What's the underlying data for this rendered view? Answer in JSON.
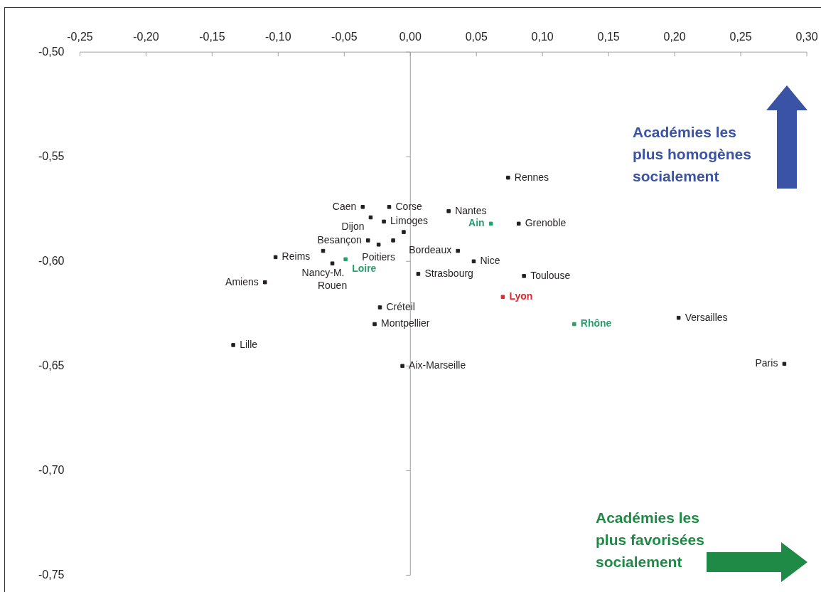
{
  "chart_data": {
    "type": "scatter",
    "marker": "square",
    "xlim": [
      -0.25,
      0.3
    ],
    "xticks": [
      {
        "value": -0.25,
        "label": "-0,25"
      },
      {
        "value": -0.2,
        "label": "-0,20"
      },
      {
        "value": -0.15,
        "label": "-0,15"
      },
      {
        "value": -0.1,
        "label": "-0,10"
      },
      {
        "value": -0.05,
        "label": "-0,05"
      },
      {
        "value": 0,
        "label": "0,00"
      },
      {
        "value": 0.05,
        "label": "0,05"
      },
      {
        "value": 0.1,
        "label": "0,10"
      },
      {
        "value": 0.15,
        "label": "0,15"
      },
      {
        "value": 0.2,
        "label": "0,20"
      },
      {
        "value": 0.25,
        "label": "0,25"
      },
      {
        "value": 0.3,
        "label": "0,30"
      }
    ],
    "ylim": [
      -0.75,
      -0.5
    ],
    "yticks": [
      {
        "value": -0.5,
        "label": "-0,50"
      },
      {
        "value": -0.55,
        "label": "-0,55"
      },
      {
        "value": -0.6,
        "label": "-0,60"
      },
      {
        "value": -0.65,
        "label": "-0,65"
      },
      {
        "value": -0.7,
        "label": "-0,70"
      },
      {
        "value": -0.75,
        "label": "-0,75"
      }
    ],
    "series": [
      {
        "x": [
          -0.036,
          -0.016,
          -0.03,
          -0.02,
          -0.005,
          -0.032,
          -0.024,
          -0.013,
          -0.066,
          -0.102,
          -0.059,
          -0.049,
          -0.11,
          0.029,
          0.061,
          0.082,
          0.074,
          0.036,
          0.048,
          0.086,
          0.006,
          0.07,
          -0.023,
          -0.027,
          -0.134,
          -0.006,
          0.124,
          0.203,
          0.283
        ],
        "values": [
          -0.574,
          -0.574,
          -0.579,
          -0.581,
          -0.586,
          -0.59,
          -0.592,
          -0.59,
          -0.595,
          -0.598,
          -0.601,
          -0.599,
          -0.61,
          -0.576,
          -0.582,
          -0.582,
          -0.56,
          -0.595,
          -0.6,
          -0.607,
          -0.606,
          -0.617,
          -0.622,
          -0.63,
          -0.64,
          -0.65,
          -0.63,
          -0.627,
          -0.649
        ],
        "colors": [
          "#231f20",
          "#231f20",
          "#231f20",
          "#231f20",
          "#231f20",
          "#231f20",
          "#231f20",
          "#231f20",
          "#231f20",
          "#231f20",
          "#231f20",
          "#2a9d6e",
          "#231f20",
          "#231f20",
          "#2a9d6e",
          "#231f20",
          "#231f20",
          "#231f20",
          "#231f20",
          "#231f20",
          "#231f20",
          "#e8262b",
          "#231f20",
          "#231f20",
          "#231f20",
          "#231f20",
          "#2a9d6e",
          "#231f20",
          "#231f20"
        ]
      }
    ],
    "annotations": [
      "Académies les plus homogènes socialement",
      "Académies les plus favorisées socialement",
      {
        "text": "Caen",
        "x": -0.036,
        "y": -0.574
      },
      {
        "text": "Corse",
        "x": -0.016,
        "y": -0.574
      },
      {
        "text": "Dijon",
        "x": -0.03,
        "y": -0.579
      },
      {
        "text": "Limoges",
        "x": -0.02,
        "y": -0.581
      },
      {
        "text": "Besançon",
        "x": -0.032,
        "y": -0.59
      },
      {
        "text": "Poitiers",
        "x": -0.024,
        "y": -0.592
      },
      {
        "text": "Nancy-M.",
        "x": -0.066,
        "y": -0.595
      },
      {
        "text": "Reims",
        "x": -0.102,
        "y": -0.598
      },
      {
        "text": "Rouen",
        "x": -0.059,
        "y": -0.601
      },
      {
        "text": "Loire",
        "x": -0.049,
        "y": -0.599
      },
      {
        "text": "Amiens",
        "x": -0.11,
        "y": -0.61
      },
      {
        "text": "Nantes",
        "x": 0.029,
        "y": -0.576
      },
      {
        "text": "Ain",
        "x": 0.061,
        "y": -0.582
      },
      {
        "text": "Grenoble",
        "x": 0.082,
        "y": -0.582
      },
      {
        "text": "Rennes",
        "x": 0.074,
        "y": -0.56
      },
      {
        "text": "Bordeaux",
        "x": 0.036,
        "y": -0.595
      },
      {
        "text": "Nice",
        "x": 0.048,
        "y": -0.6
      },
      {
        "text": "Toulouse",
        "x": 0.086,
        "y": -0.607
      },
      {
        "text": "Strasbourg",
        "x": 0.006,
        "y": -0.606
      },
      {
        "text": "Lyon",
        "x": 0.07,
        "y": -0.617
      },
      {
        "text": "Créteil",
        "x": -0.023,
        "y": -0.622
      },
      {
        "text": "Montpellier",
        "x": -0.027,
        "y": -0.63
      },
      {
        "text": "Lille",
        "x": -0.134,
        "y": -0.64
      },
      {
        "text": "Aix-Marseille",
        "x": -0.006,
        "y": -0.65
      },
      {
        "text": "Rhône",
        "x": 0.124,
        "y": -0.63
      },
      {
        "text": "Versailles",
        "x": 0.203,
        "y": -0.627
      },
      {
        "text": "Paris",
        "x": 0.283,
        "y": -0.649
      }
    ]
  }
}
